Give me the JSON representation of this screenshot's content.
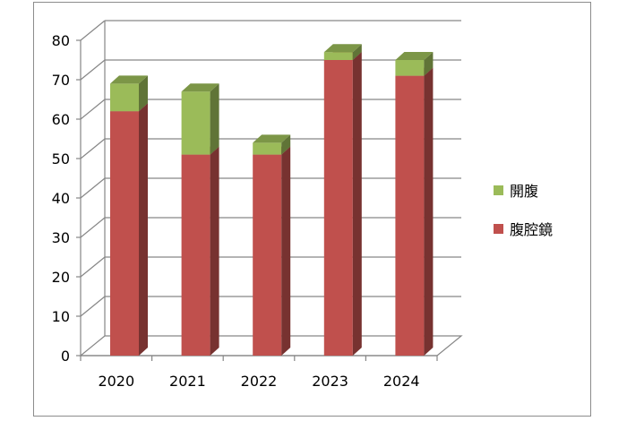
{
  "chart_data": {
    "type": "bar",
    "stacked": true,
    "three_d": true,
    "title": "",
    "xlabel": "",
    "ylabel": "",
    "categories": [
      "2020",
      "2021",
      "2022",
      "2023",
      "2024"
    ],
    "ylim": [
      0,
      80
    ],
    "yticks": [
      0,
      10,
      20,
      30,
      40,
      50,
      60,
      70,
      80
    ],
    "grid": true,
    "legend_position": "right",
    "series": [
      {
        "name": "腹腔鏡",
        "color": "#c0504d",
        "values": [
          62,
          51,
          51,
          75,
          71
        ]
      },
      {
        "name": "開腹",
        "color": "#9bbb59",
        "values": [
          7,
          16,
          3,
          2,
          4
        ]
      }
    ],
    "legend_order": [
      "開腹",
      "腹腔鏡"
    ]
  }
}
